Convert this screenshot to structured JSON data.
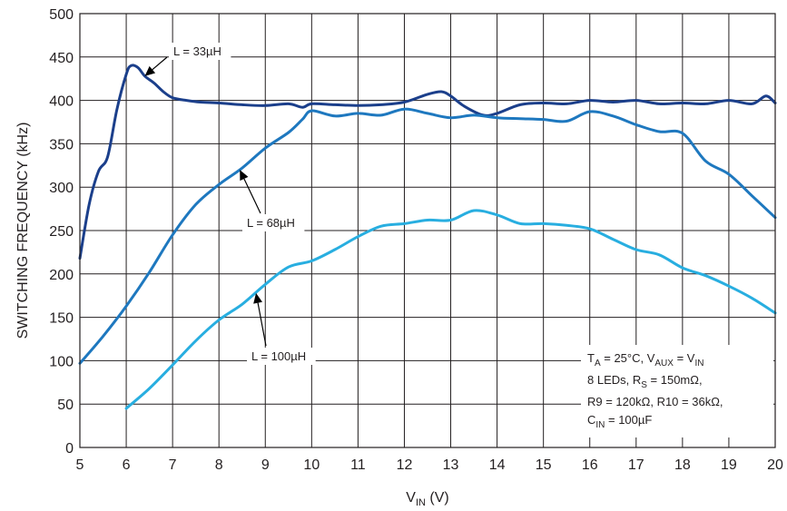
{
  "chart_data": {
    "type": "line",
    "title": "",
    "xlabel": {
      "main": "V",
      "sub": "IN",
      "unit": " (V)"
    },
    "ylabel": "SWITCHING FREQUENCY (kHz)",
    "xlim": [
      5,
      20
    ],
    "ylim": [
      0,
      500
    ],
    "xticks": [
      5,
      6,
      7,
      8,
      9,
      10,
      11,
      12,
      13,
      14,
      15,
      16,
      17,
      18,
      19,
      20
    ],
    "yticks": [
      0,
      50,
      100,
      150,
      200,
      250,
      300,
      350,
      400,
      450,
      500
    ],
    "grid": true,
    "series": [
      {
        "name": "L = 33µH",
        "color": "#1b3f8b",
        "x": [
          5.0,
          5.2,
          5.4,
          5.6,
          5.8,
          6.0,
          6.1,
          6.25,
          6.4,
          6.6,
          6.8,
          7.0,
          7.3,
          7.6,
          8.0,
          8.5,
          9.0,
          9.5,
          9.8,
          10.0,
          10.5,
          11.0,
          11.5,
          12.0,
          12.5,
          12.8,
          13.0,
          13.3,
          13.7,
          14.0,
          14.5,
          15.0,
          15.5,
          16.0,
          16.5,
          17.0,
          17.5,
          18.0,
          18.5,
          19.0,
          19.5,
          19.8,
          20.0
        ],
        "y": [
          218,
          280,
          318,
          335,
          390,
          430,
          440,
          438,
          428,
          420,
          410,
          403,
          400,
          398,
          397,
          395,
          394,
          396,
          392,
          396,
          395,
          394,
          395,
          398,
          407,
          410,
          405,
          393,
          383,
          385,
          395,
          397,
          396,
          400,
          398,
          400,
          396,
          397,
          396,
          400,
          396,
          405,
          397
        ]
      },
      {
        "name": "L = 68µH",
        "color": "#1e78bf",
        "x": [
          5.0,
          5.5,
          6.0,
          6.5,
          7.0,
          7.5,
          8.0,
          8.5,
          9.0,
          9.5,
          9.8,
          10.0,
          10.5,
          11.0,
          11.5,
          12.0,
          12.5,
          13.0,
          13.5,
          14.0,
          14.5,
          15.0,
          15.5,
          16.0,
          16.5,
          17.0,
          17.5,
          18.0,
          18.5,
          19.0,
          19.5,
          20.0
        ],
        "y": [
          97,
          128,
          163,
          202,
          245,
          280,
          303,
          322,
          345,
          363,
          378,
          388,
          382,
          385,
          383,
          390,
          385,
          380,
          383,
          380,
          379,
          378,
          376,
          387,
          382,
          372,
          364,
          362,
          330,
          315,
          290,
          265
        ]
      },
      {
        "name": "L = 100µH",
        "color": "#28aee0",
        "x": [
          6.0,
          6.5,
          7.0,
          7.5,
          8.0,
          8.5,
          9.0,
          9.5,
          10.0,
          10.5,
          11.0,
          11.5,
          12.0,
          12.5,
          13.0,
          13.5,
          14.0,
          14.5,
          15.0,
          15.5,
          16.0,
          16.5,
          17.0,
          17.5,
          18.0,
          18.5,
          19.0,
          19.5,
          20.0
        ],
        "y": [
          45,
          68,
          95,
          123,
          147,
          165,
          188,
          208,
          215,
          228,
          243,
          255,
          258,
          262,
          262,
          273,
          268,
          258,
          258,
          256,
          252,
          240,
          228,
          222,
          207,
          198,
          186,
          172,
          155
        ]
      }
    ],
    "annotations": [
      {
        "label": "L = 33µH",
        "series": 0
      },
      {
        "label": "L = 68µH",
        "series": 1
      },
      {
        "label": "L = 100µH",
        "series": 2
      }
    ],
    "notes": [
      {
        "text": "T",
        "sub": "A",
        "rest": " = 25°C, V",
        "sub2": "AUX",
        "rest2": " = V",
        "sub3": "IN"
      },
      {
        "text": "8 LEDs, R",
        "sub": "S",
        "rest": " = 150mΩ,",
        "sub2": "",
        "rest2": "",
        "sub3": ""
      },
      {
        "text": "R9 = 120kΩ, R10 = 36kΩ,",
        "sub": "",
        "rest": "",
        "sub2": "",
        "rest2": "",
        "sub3": ""
      },
      {
        "text": "C",
        "sub": "IN",
        "rest": " = 100µF",
        "sub2": "",
        "rest2": "",
        "sub3": ""
      }
    ]
  }
}
